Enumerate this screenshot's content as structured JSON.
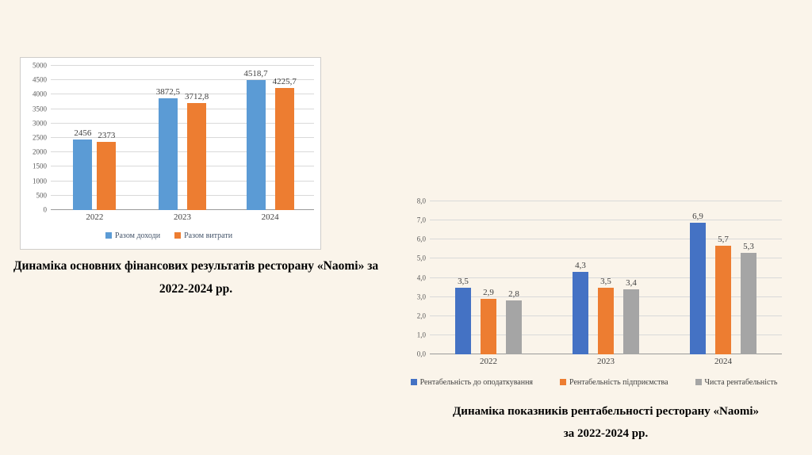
{
  "background": "#faf4ea",
  "captions": {
    "chart1_line1": "Динаміка основних  фінансових результатів ресторану «Naomi» за",
    "chart1_line2": "2022-2024 рр.",
    "chart2_line1": "Динаміка показників рентабельності ресторану «Naomi»",
    "chart2_line2": "за 2022-2024 рр."
  },
  "chart_data": [
    {
      "type": "bar",
      "title": "",
      "categories": [
        "2022",
        "2023",
        "2024"
      ],
      "series": [
        {
          "name": "Разом доходи",
          "color": "#5b9bd5",
          "values": [
            2456,
            3872.5,
            4518.7
          ],
          "labels": [
            "2456",
            "3872,5",
            "4518,7"
          ]
        },
        {
          "name": "Разом витрати",
          "color": "#ed7d31",
          "values": [
            2373,
            3712.8,
            4225.7
          ],
          "labels": [
            "2373",
            "3712,8",
            "4225,7"
          ]
        }
      ],
      "xlabel": "",
      "ylabel": "",
      "ylim": [
        0,
        5000
      ],
      "yticks": [
        "0",
        "500",
        "1000",
        "1500",
        "2000",
        "2500",
        "3000",
        "3500",
        "4000",
        "4500",
        "5000"
      ],
      "grid": true,
      "legend_position": "bottom"
    },
    {
      "type": "bar",
      "title": "",
      "categories": [
        "2022",
        "2023",
        "2024"
      ],
      "series": [
        {
          "name": "Рентабельність до оподаткування",
          "color": "#4472c4",
          "values": [
            3.5,
            4.3,
            6.9
          ],
          "labels": [
            "3,5",
            "4,3",
            "6,9"
          ]
        },
        {
          "name": "Рентабельність підприємства",
          "color": "#ed7d31",
          "values": [
            2.9,
            3.5,
            5.7
          ],
          "labels": [
            "2,9",
            "3,5",
            "5,7"
          ]
        },
        {
          "name": "Чиста рентабельність",
          "color": "#a5a5a5",
          "values": [
            2.8,
            3.4,
            5.3
          ],
          "labels": [
            "2,8",
            "3,4",
            "5,3"
          ]
        }
      ],
      "xlabel": "",
      "ylabel": "",
      "ylim": [
        0,
        8
      ],
      "yticks": [
        "0,0",
        "1,0",
        "2,0",
        "3,0",
        "4,0",
        "5,0",
        "6,0",
        "7,0",
        "8,0"
      ],
      "grid": true,
      "legend_position": "bottom"
    }
  ]
}
